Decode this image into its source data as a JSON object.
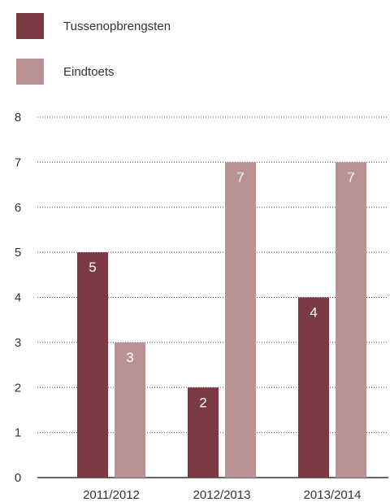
{
  "chart_data": {
    "type": "bar",
    "categories": [
      "2011/2012",
      "2012/2013",
      "2013/2014"
    ],
    "series": [
      {
        "name": "Tussenopbrengsten",
        "color": "#7b3a42",
        "values": [
          5,
          2,
          4
        ]
      },
      {
        "name": "Eindtoets",
        "color": "#b99291",
        "values": [
          3,
          7,
          7
        ]
      }
    ],
    "ylim": [
      0,
      8
    ],
    "yticks": [
      0,
      1,
      2,
      3,
      4,
      5,
      6,
      7,
      8
    ],
    "grid": "horizontal dotted",
    "legend": "top-left",
    "data_labels": true
  },
  "colors": {
    "gridline": "#555555",
    "axis": "#333333",
    "text": "#333333",
    "data_label": "#ffffff"
  }
}
